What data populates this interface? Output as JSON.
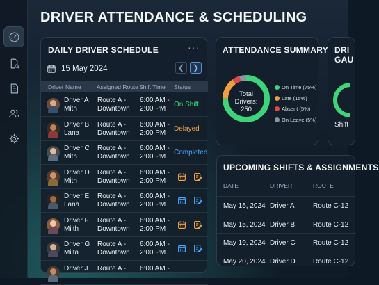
{
  "page_title": "DRIVER ATTENDANCE & SCHEDULING",
  "sidebar": {
    "items": [
      {
        "icon": "dashboard-gauge-icon",
        "active": true
      },
      {
        "icon": "document-search-icon",
        "active": false
      },
      {
        "icon": "document-icon",
        "active": false
      },
      {
        "icon": "users-icon",
        "active": false
      },
      {
        "icon": "gear-icon",
        "active": false
      }
    ]
  },
  "schedule": {
    "title": "DAILY DRIVER SCHEDULE",
    "more": "···",
    "date": "15 May 2024",
    "columns": [
      "Driver Name",
      "Assigned Route",
      "Shift Time",
      "Status"
    ],
    "rows": [
      {
        "name1": "Driver A",
        "name2": "Mith",
        "route1": "Route A -",
        "route2": "Downtown",
        "time1": "6:00 AM -",
        "time2": "2:00 PM",
        "status": "On Shift",
        "status_color": "green"
      },
      {
        "name1": "Driver B",
        "name2": "Lana",
        "route1": "Route A -",
        "route2": "Downtown",
        "time1": "6:00 AM -",
        "time2": "2:00 PM",
        "status": "Delayed",
        "status_color": "orange"
      },
      {
        "name1": "Driver C",
        "name2": "Mith",
        "route1": "Route A -",
        "route2": "Downtown",
        "time1": "6:00 AM -",
        "time2": "2:00 PM",
        "status": "Completed",
        "status_color": "blue"
      },
      {
        "name1": "Driver D",
        "name2": "Mith",
        "route1": "Route A -",
        "route2": "Downtown",
        "time1": "6:00 AM -",
        "time2": "2:00 PM",
        "status": "",
        "actions": "orange"
      },
      {
        "name1": "Driver E",
        "name2": "Lana",
        "route1": "Route A -",
        "route2": "Downtown",
        "time1": "6:00 AM -",
        "time2": "2:00 PM",
        "status": "",
        "actions": "blue"
      },
      {
        "name1": "Driver F",
        "name2": "Miith",
        "route1": "Route A -",
        "route2": "Downtown",
        "time1": "6:00 AM -",
        "time2": "2:00 PM",
        "status": "",
        "actions": "orange"
      },
      {
        "name1": "Driver G",
        "name2": "Miita",
        "route1": "Route A -",
        "route2": "Downtown",
        "time1": "6:00 AM -",
        "time2": "2:00 PM",
        "status": "",
        "actions": "blue"
      },
      {
        "name1": "Driver J",
        "name2": "",
        "route1": "Route A -",
        "route2": "",
        "time1": "6:00 AM -",
        "time2": "",
        "status": "",
        "actions": "none"
      }
    ]
  },
  "summary": {
    "title": "ATTENDANCE SUMMARY",
    "center1": "Total",
    "center2": "Drivers:",
    "center3": "250",
    "legend": [
      {
        "label": "On Time (75%)",
        "color": "#3dd47a",
        "fraction": 0.75
      },
      {
        "label": "Late (15%)",
        "color": "#f0a040",
        "fraction": 0.15
      },
      {
        "label": "Absent (5%)",
        "color": "#e04848",
        "fraction": 0.05
      },
      {
        "label": "On Leave (5%)",
        "color": "#8a96a2",
        "fraction": 0.05
      }
    ]
  },
  "gauge": {
    "title1": "DRI",
    "title2": "GAU",
    "label": "Shift"
  },
  "upcoming": {
    "title": "UPCOMING SHIFTS & ASSIGNMENTS",
    "columns": [
      "DATE",
      "DRIVER",
      "ROUTE"
    ],
    "rows": [
      {
        "date": "May 15, 2024",
        "driver": "Driver A",
        "route": "Route C-12"
      },
      {
        "date": "May 15, 2024",
        "driver": "Driver B",
        "route": "Route C-12"
      },
      {
        "date": "May 19, 2024",
        "driver": "Driver C",
        "route": "Route C-12"
      },
      {
        "date": "May 20, 2024",
        "driver": "Driver D",
        "route": "Route C-12"
      }
    ]
  },
  "colors": {
    "green": "#3dd47a",
    "orange": "#f0a040",
    "blue": "#4aa8ff",
    "accent": "#5b8ed0"
  }
}
